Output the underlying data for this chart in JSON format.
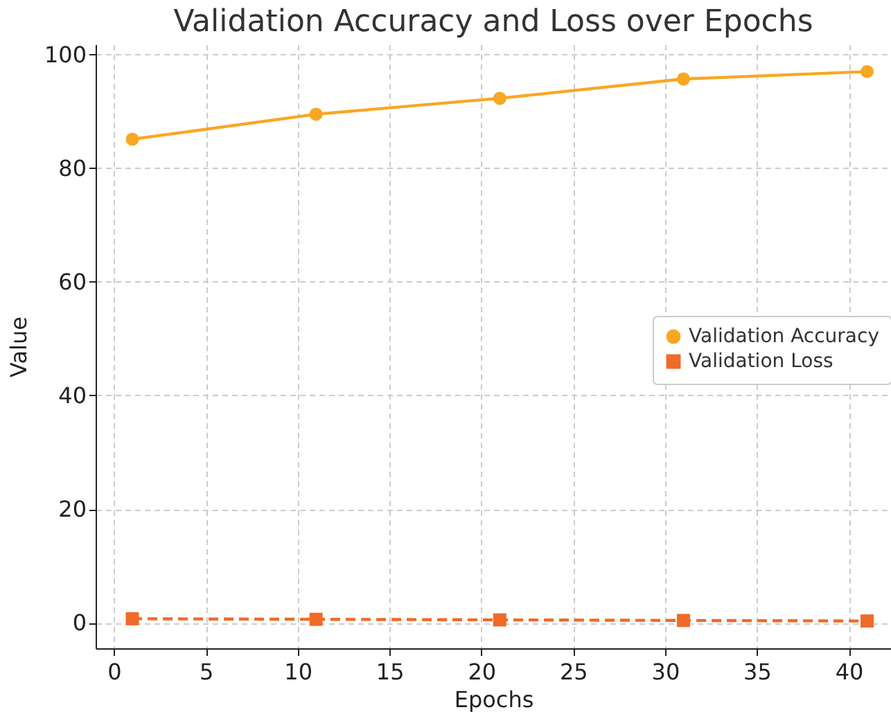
{
  "chart_data": {
    "type": "line",
    "title": "Validation Accuracy and Loss over Epochs",
    "xlabel": "Epochs",
    "ylabel": "Value",
    "x": [
      1,
      11,
      21,
      31,
      41
    ],
    "series": [
      {
        "name": "Validation Accuracy",
        "color": "#f8a723",
        "values": [
          85.1,
          89.5,
          92.3,
          95.7,
          97.0
        ],
        "marker": "circle",
        "line_style": "solid"
      },
      {
        "name": "Validation Loss",
        "color": "#f06a28",
        "values": [
          0.7,
          0.6,
          0.5,
          0.4,
          0.3
        ],
        "marker": "square",
        "line_style": "dashed"
      }
    ],
    "xlim": [
      -1,
      42.3
    ],
    "ylim": [
      -4.5,
      101.8
    ],
    "xticks": [
      0,
      5,
      10,
      15,
      20,
      25,
      30,
      35,
      40
    ],
    "yticks": [
      0,
      20,
      40,
      60,
      80,
      100
    ],
    "grid": true,
    "legend": "right"
  }
}
